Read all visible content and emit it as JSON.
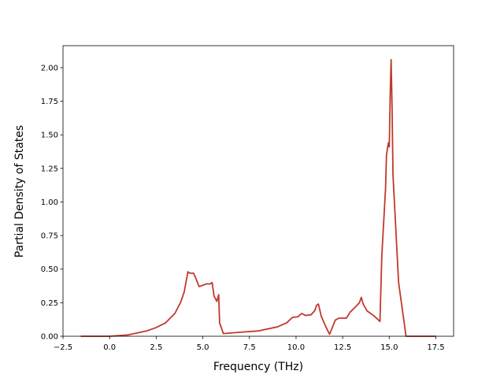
{
  "chart_data": {
    "type": "line",
    "xlabel": "Frequency (THz)",
    "ylabel": "Partial Density of States",
    "x": [
      -1.55,
      0,
      1,
      2,
      2.5,
      3,
      3.5,
      3.8,
      4.0,
      4.2,
      4.3,
      4.5,
      4.6,
      4.8,
      5.0,
      5.2,
      5.4,
      5.5,
      5.6,
      5.75,
      5.85,
      5.9,
      6.1,
      7,
      8,
      9,
      9.5,
      9.8,
      10.1,
      10.3,
      10.5,
      10.8,
      11.0,
      11.1,
      11.2,
      11.35,
      11.6,
      11.8,
      12.1,
      12.3,
      12.7,
      12.9,
      13.2,
      13.4,
      13.5,
      13.6,
      13.8,
      14.2,
      14.5,
      14.6,
      14.8,
      14.85,
      14.95,
      15.0,
      15.05,
      15.1,
      15.15,
      15.2,
      15.35,
      15.5,
      15.8,
      15.9,
      16.5,
      17.5
    ],
    "series": [
      {
        "color": "#c0392b",
        "values": [
          0,
          0,
          0.01,
          0.04,
          0.065,
          0.1,
          0.17,
          0.25,
          0.33,
          0.48,
          0.47,
          0.47,
          0.44,
          0.37,
          0.38,
          0.39,
          0.39,
          0.4,
          0.3,
          0.26,
          0.31,
          0.1,
          0.02,
          0.03,
          0.04,
          0.07,
          0.1,
          0.14,
          0.145,
          0.17,
          0.155,
          0.16,
          0.19,
          0.23,
          0.24,
          0.15,
          0.07,
          0.015,
          0.12,
          0.135,
          0.135,
          0.18,
          0.22,
          0.25,
          0.29,
          0.24,
          0.19,
          0.15,
          0.11,
          0.6,
          1.1,
          1.35,
          1.44,
          1.41,
          1.8,
          2.06,
          1.7,
          1.2,
          0.8,
          0.4,
          0.1,
          0,
          0,
          0
        ]
      }
    ],
    "xlim": [
      -2.5,
      18.45
    ],
    "ylim": [
      0,
      2.164
    ],
    "xticks": [
      {
        "value": -2.5,
        "label": "−2.5"
      },
      {
        "value": 0,
        "label": "0.0"
      },
      {
        "value": 2.5,
        "label": "2.5"
      },
      {
        "value": 5,
        "label": "5.0"
      },
      {
        "value": 7.5,
        "label": "7.5"
      },
      {
        "value": 10,
        "label": "10.0"
      },
      {
        "value": 12.5,
        "label": "12.5"
      },
      {
        "value": 15,
        "label": "15.0"
      },
      {
        "value": 17.5,
        "label": "17.5"
      }
    ],
    "yticks": [
      {
        "value": 0,
        "label": "0.00"
      },
      {
        "value": 0.25,
        "label": "0.25"
      },
      {
        "value": 0.5,
        "label": "0.50"
      },
      {
        "value": 0.75,
        "label": "0.75"
      },
      {
        "value": 1,
        "label": "1.00"
      },
      {
        "value": 1.25,
        "label": "1.25"
      },
      {
        "value": 1.5,
        "label": "1.50"
      },
      {
        "value": 1.75,
        "label": "1.75"
      },
      {
        "value": 2,
        "label": "2.00"
      }
    ],
    "grid": false
  }
}
